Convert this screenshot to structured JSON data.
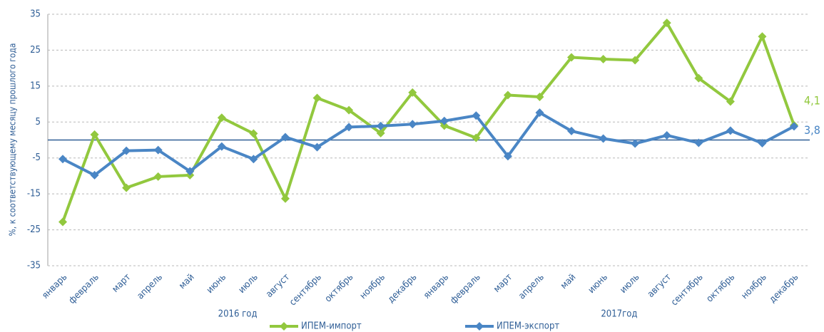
{
  "chart_data": {
    "type": "line",
    "y_label": "%, к соответствующему месяцу прошлого года",
    "categories": [
      "январь",
      "февраль",
      "март",
      "апрель",
      "май",
      "июнь",
      "июль",
      "август",
      "сентябрь",
      "октябрь",
      "ноябрь",
      "декабрь",
      "январь",
      "февраль",
      "март",
      "апрель",
      "май",
      "июнь",
      "июль",
      "август",
      "сентябрь",
      "октябрь",
      "ноябрь",
      "декабрь"
    ],
    "x_groups": [
      "2016 год",
      "2017год"
    ],
    "series": [
      {
        "name": "ИПЕМ-импорт",
        "color": "#92c83e",
        "values": [
          -22.8,
          1.5,
          -13.3,
          -10.2,
          -9.8,
          6.2,
          1.8,
          -16.3,
          11.7,
          8.3,
          1.9,
          13.2,
          4.0,
          0.6,
          12.5,
          12.0,
          23.0,
          22.5,
          22.2,
          32.6,
          17.2,
          10.7,
          28.8,
          4.1
        ],
        "value_labels": [
          null,
          null,
          null,
          null,
          null,
          null,
          null,
          null,
          null,
          null,
          null,
          null,
          null,
          null,
          null,
          null,
          null,
          null,
          null,
          null,
          null,
          null,
          null,
          "4,1"
        ]
      },
      {
        "name": "ИПЕМ-экспорт",
        "color": "#4a86c5",
        "values": [
          -5.3,
          -9.8,
          -3.0,
          -2.8,
          -8.7,
          -1.8,
          -5.3,
          0.8,
          -2.0,
          3.6,
          3.9,
          4.4,
          5.3,
          6.8,
          -4.5,
          7.6,
          2.5,
          0.4,
          -1.0,
          1.3,
          -0.8,
          2.6,
          -0.9,
          3.8
        ],
        "value_labels": [
          null,
          null,
          null,
          null,
          null,
          null,
          null,
          null,
          null,
          null,
          null,
          null,
          null,
          null,
          null,
          null,
          null,
          null,
          null,
          null,
          null,
          null,
          null,
          "3,8"
        ]
      }
    ],
    "ylim": [
      -35,
      35
    ],
    "yticks": [
      -35,
      -25,
      -15,
      -5,
      5,
      15,
      25,
      35
    ],
    "grid": true,
    "legend": "bottom"
  }
}
